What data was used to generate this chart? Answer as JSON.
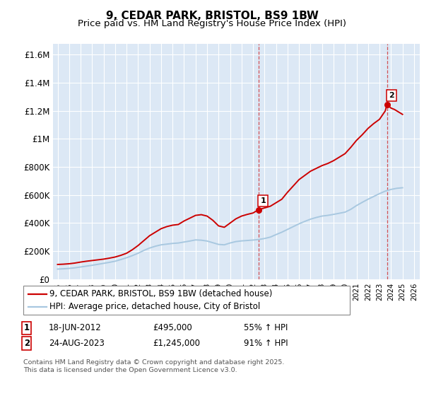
{
  "title": "9, CEDAR PARK, BRISTOL, BS9 1BW",
  "subtitle": "Price paid vs. HM Land Registry's House Price Index (HPI)",
  "ylabel_ticks": [
    "£0",
    "£200K",
    "£400K",
    "£600K",
    "£800K",
    "£1M",
    "£1.2M",
    "£1.4M",
    "£1.6M"
  ],
  "ytick_values": [
    0,
    200000,
    400000,
    600000,
    800000,
    1000000,
    1200000,
    1400000,
    1600000
  ],
  "ylim": [
    0,
    1680000
  ],
  "xlim_start": 1994.6,
  "xlim_end": 2026.5,
  "red_line_color": "#cc0000",
  "blue_line_color": "#a8c8e0",
  "plot_bg_color": "#dce8f5",
  "grid_color": "#ffffff",
  "marker1_x": 2012.46,
  "marker1_y": 495000,
  "marker2_x": 2023.65,
  "marker2_y": 1245000,
  "vline1_x": 2012.46,
  "vline2_x": 2023.65,
  "legend_line1": "9, CEDAR PARK, BRISTOL, BS9 1BW (detached house)",
  "legend_line2": "HPI: Average price, detached house, City of Bristol",
  "table_row1": [
    "1",
    "18-JUN-2012",
    "£495,000",
    "55% ↑ HPI"
  ],
  "table_row2": [
    "2",
    "24-AUG-2023",
    "£1,245,000",
    "91% ↑ HPI"
  ],
  "footnote": "Contains HM Land Registry data © Crown copyright and database right 2025.\nThis data is licensed under the Open Government Licence v3.0.",
  "red_x": [
    1995.0,
    1995.5,
    1996.0,
    1996.5,
    1997.0,
    1997.5,
    1998.0,
    1998.5,
    1999.0,
    1999.5,
    2000.0,
    2000.5,
    2001.0,
    2001.5,
    2002.0,
    2002.5,
    2003.0,
    2003.5,
    2004.0,
    2004.5,
    2005.0,
    2005.5,
    2006.0,
    2006.5,
    2007.0,
    2007.5,
    2008.0,
    2008.5,
    2009.0,
    2009.5,
    2010.0,
    2010.5,
    2011.0,
    2011.5,
    2012.0,
    2012.46,
    2013.0,
    2013.5,
    2014.0,
    2014.5,
    2015.0,
    2015.5,
    2016.0,
    2016.5,
    2017.0,
    2017.5,
    2018.0,
    2018.5,
    2019.0,
    2019.5,
    2020.0,
    2020.5,
    2021.0,
    2021.5,
    2022.0,
    2022.5,
    2023.0,
    2023.5,
    2023.65,
    2024.0,
    2024.3,
    2024.6,
    2025.0
  ],
  "red_y": [
    105000,
    107000,
    110000,
    115000,
    122000,
    128000,
    133000,
    138000,
    143000,
    150000,
    158000,
    170000,
    185000,
    210000,
    240000,
    275000,
    310000,
    335000,
    360000,
    375000,
    385000,
    390000,
    415000,
    435000,
    455000,
    460000,
    450000,
    420000,
    380000,
    370000,
    400000,
    430000,
    450000,
    462000,
    472000,
    495000,
    508000,
    520000,
    545000,
    570000,
    620000,
    665000,
    710000,
    740000,
    770000,
    790000,
    810000,
    825000,
    845000,
    870000,
    895000,
    940000,
    990000,
    1030000,
    1075000,
    1110000,
    1140000,
    1200000,
    1245000,
    1220000,
    1210000,
    1195000,
    1175000
  ],
  "blue_x": [
    1995.0,
    1995.5,
    1996.0,
    1996.5,
    1997.0,
    1997.5,
    1998.0,
    1998.5,
    1999.0,
    1999.5,
    2000.0,
    2000.5,
    2001.0,
    2001.5,
    2002.0,
    2002.5,
    2003.0,
    2003.5,
    2004.0,
    2004.5,
    2005.0,
    2005.5,
    2006.0,
    2006.5,
    2007.0,
    2007.5,
    2008.0,
    2008.5,
    2009.0,
    2009.5,
    2010.0,
    2010.5,
    2011.0,
    2011.5,
    2012.0,
    2012.5,
    2013.0,
    2013.5,
    2014.0,
    2014.5,
    2015.0,
    2015.5,
    2016.0,
    2016.5,
    2017.0,
    2017.5,
    2018.0,
    2018.5,
    2019.0,
    2019.5,
    2020.0,
    2020.5,
    2021.0,
    2021.5,
    2022.0,
    2022.5,
    2023.0,
    2023.5,
    2024.0,
    2024.5,
    2025.0
  ],
  "blue_y": [
    72000,
    74000,
    77000,
    81000,
    87000,
    93000,
    99000,
    106000,
    113000,
    120000,
    128000,
    140000,
    153000,
    168000,
    185000,
    205000,
    222000,
    235000,
    245000,
    250000,
    255000,
    258000,
    265000,
    272000,
    280000,
    278000,
    272000,
    260000,
    248000,
    245000,
    258000,
    268000,
    273000,
    276000,
    279000,
    283000,
    290000,
    300000,
    318000,
    335000,
    355000,
    375000,
    395000,
    412000,
    428000,
    440000,
    450000,
    455000,
    462000,
    470000,
    478000,
    498000,
    525000,
    548000,
    570000,
    590000,
    610000,
    628000,
    640000,
    648000,
    652000
  ]
}
